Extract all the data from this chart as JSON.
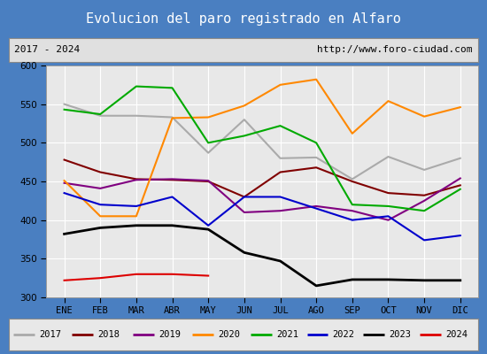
{
  "title": "Evolucion del paro registrado en Alfaro",
  "subtitle_left": "2017 - 2024",
  "subtitle_right": "http://www.foro-ciudad.com",
  "months": [
    "ENE",
    "FEB",
    "MAR",
    "ABR",
    "MAY",
    "JUN",
    "JUL",
    "AGO",
    "SEP",
    "OCT",
    "NOV",
    "DIC"
  ],
  "ylim": [
    300,
    600
  ],
  "yticks": [
    300,
    350,
    400,
    450,
    500,
    550,
    600
  ],
  "series": {
    "2017": {
      "color": "#aaaaaa",
      "values": [
        550,
        535,
        535,
        533,
        487,
        530,
        480,
        481,
        453,
        482,
        465,
        480
      ]
    },
    "2018": {
      "color": "#800000",
      "values": [
        478,
        462,
        453,
        452,
        450,
        430,
        462,
        468,
        450,
        435,
        432,
        445
      ]
    },
    "2019": {
      "color": "#800080",
      "values": [
        448,
        441,
        452,
        453,
        451,
        410,
        412,
        418,
        412,
        400,
        425,
        454
      ]
    },
    "2020": {
      "color": "#ff8800",
      "values": [
        451,
        405,
        405,
        532,
        533,
        548,
        575,
        582,
        512,
        554,
        534,
        546
      ]
    },
    "2021": {
      "color": "#00aa00",
      "values": [
        543,
        537,
        573,
        571,
        500,
        509,
        522,
        500,
        420,
        418,
        412,
        440
      ]
    },
    "2022": {
      "color": "#0000cc",
      "values": [
        435,
        420,
        418,
        430,
        393,
        430,
        430,
        415,
        400,
        405,
        374,
        380
      ]
    },
    "2023": {
      "color": "#000000",
      "values": [
        382,
        390,
        393,
        393,
        388,
        358,
        347,
        315,
        323,
        323,
        322,
        322
      ]
    },
    "2024": {
      "color": "#dd0000",
      "values": [
        322,
        325,
        330,
        330,
        328,
        null,
        null,
        null,
        null,
        null,
        null,
        null
      ]
    }
  },
  "title_bg_color": "#4a90d9",
  "title_fg_color": "#ffffff",
  "border_color": "#4a7fc1",
  "outer_bg": "#c8d8e8",
  "plot_bg_color": "#e8e8e8",
  "grid_color": "#ffffff",
  "subtitle_bg": "#e0e0e0",
  "legend_bg": "#e8e8e8"
}
